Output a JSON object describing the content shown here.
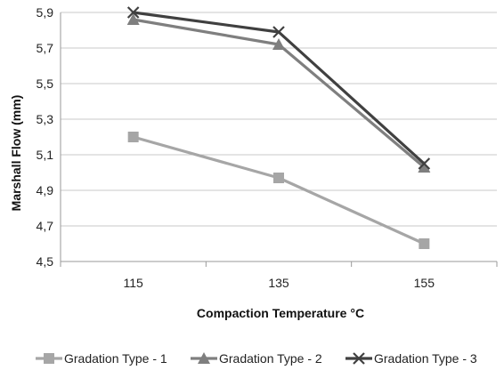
{
  "chart_data": {
    "type": "line",
    "xlabel": "Compaction Temperature °C",
    "ylabel": "Marshall Flow (mm)",
    "categories": [
      "115",
      "135",
      "155"
    ],
    "ylim": [
      4.5,
      5.9
    ],
    "yticks": [
      "4,5",
      "4,7",
      "4,9",
      "5,1",
      "5,3",
      "5,5",
      "5,7",
      "5,9"
    ],
    "grid": true,
    "legend_position": "bottom",
    "series": [
      {
        "name": "Gradation Type - 1",
        "values": [
          5.2,
          4.97,
          4.6
        ],
        "color": "#a6a6a6",
        "marker": "square"
      },
      {
        "name": "Gradation Type - 2",
        "values": [
          5.86,
          5.72,
          5.03
        ],
        "color": "#7f7f7f",
        "marker": "triangle"
      },
      {
        "name": "Gradation Type - 3",
        "values": [
          5.9,
          5.79,
          5.05
        ],
        "color": "#404040",
        "marker": "x"
      }
    ]
  }
}
